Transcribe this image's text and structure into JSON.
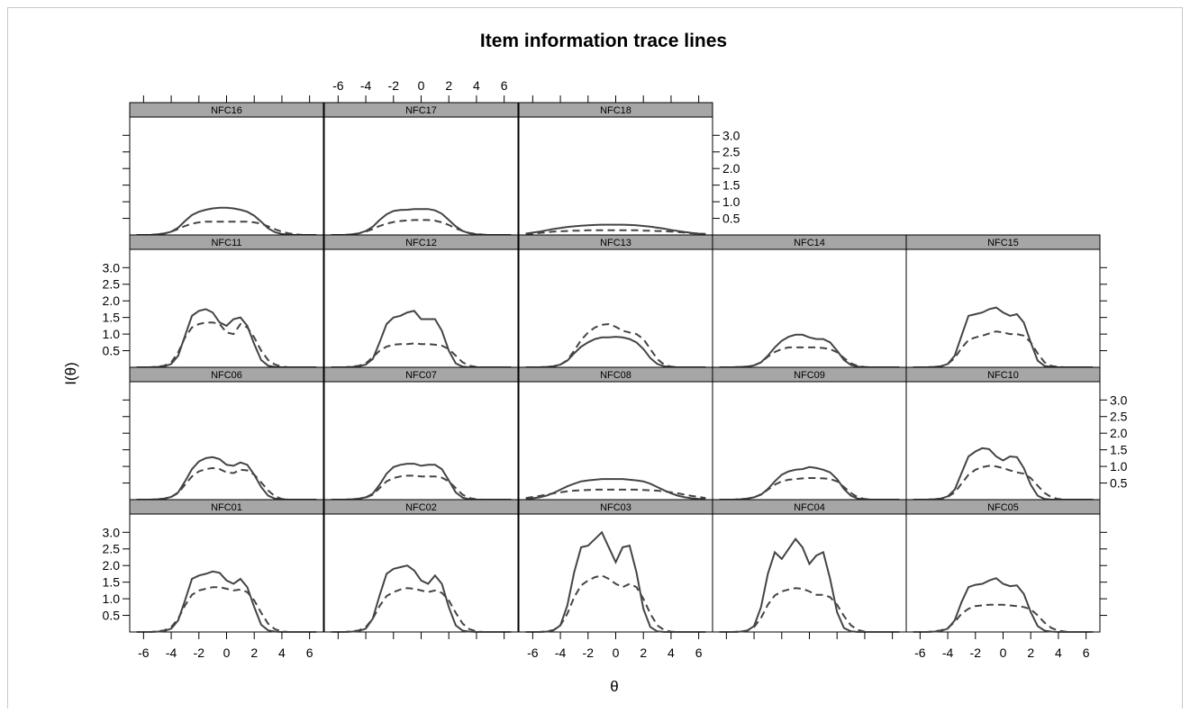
{
  "chart_data": {
    "type": "line",
    "title": "Item information trace lines",
    "xlabel": "θ",
    "ylabel": "I(θ)",
    "xlim": [
      -7,
      7
    ],
    "ylim": [
      0,
      3.55
    ],
    "x_ticks": [
      -6,
      -4,
      -2,
      0,
      2,
      4,
      6
    ],
    "x_tick_labels": [
      "-6",
      "-4",
      "-2",
      "0",
      "2",
      "4",
      "6"
    ],
    "y_ticks": [
      0.5,
      1.0,
      1.5,
      2.0,
      2.5,
      3.0
    ],
    "y_tick_labels": [
      "0.5",
      "1.0",
      "1.5",
      "2.0",
      "2.5",
      "3.0"
    ],
    "grid": false,
    "legend": "none",
    "line_color": "#444444",
    "strip_color": "#a6a6a6",
    "series_styles": [
      "solid",
      "dashed"
    ],
    "x": [
      -6.5,
      -6,
      -5.5,
      -5,
      -4.5,
      -4,
      -3.5,
      -3,
      -2.5,
      -2,
      -1.5,
      -1,
      -0.5,
      0,
      0.5,
      1,
      1.5,
      2,
      2.5,
      3,
      3.5,
      4,
      4.5,
      5,
      5.5,
      6,
      6.5
    ],
    "panels": [
      {
        "label": "NFC16",
        "solid": [
          0,
          0,
          0,
          0.02,
          0.04,
          0.1,
          0.22,
          0.42,
          0.6,
          0.7,
          0.76,
          0.8,
          0.82,
          0.82,
          0.8,
          0.76,
          0.7,
          0.58,
          0.4,
          0.2,
          0.08,
          0.03,
          0.01,
          0,
          0,
          0,
          0
        ],
        "dashed": [
          0,
          0,
          0,
          0.02,
          0.05,
          0.1,
          0.18,
          0.27,
          0.34,
          0.38,
          0.4,
          0.4,
          0.4,
          0.4,
          0.4,
          0.4,
          0.4,
          0.38,
          0.34,
          0.26,
          0.17,
          0.1,
          0.05,
          0.02,
          0,
          0,
          0
        ]
      },
      {
        "label": "NFC17",
        "solid": [
          0,
          0,
          0,
          0.02,
          0.05,
          0.12,
          0.25,
          0.45,
          0.62,
          0.72,
          0.75,
          0.76,
          0.78,
          0.78,
          0.78,
          0.74,
          0.64,
          0.45,
          0.26,
          0.12,
          0.05,
          0.02,
          0,
          0,
          0,
          0,
          0
        ],
        "dashed": [
          0,
          0,
          0,
          0.02,
          0.05,
          0.1,
          0.18,
          0.27,
          0.34,
          0.39,
          0.42,
          0.44,
          0.45,
          0.45,
          0.45,
          0.43,
          0.38,
          0.3,
          0.2,
          0.12,
          0.06,
          0.03,
          0.01,
          0,
          0,
          0,
          0
        ]
      },
      {
        "label": "NFC18",
        "solid": [
          0.04,
          0.07,
          0.1,
          0.14,
          0.18,
          0.21,
          0.24,
          0.26,
          0.28,
          0.29,
          0.3,
          0.31,
          0.31,
          0.31,
          0.31,
          0.3,
          0.29,
          0.27,
          0.25,
          0.22,
          0.19,
          0.15,
          0.12,
          0.09,
          0.06,
          0.04,
          0.03
        ],
        "dashed": [
          0.02,
          0.04,
          0.06,
          0.08,
          0.1,
          0.11,
          0.12,
          0.13,
          0.13,
          0.14,
          0.14,
          0.14,
          0.14,
          0.14,
          0.14,
          0.14,
          0.14,
          0.13,
          0.13,
          0.12,
          0.11,
          0.1,
          0.09,
          0.07,
          0.05,
          0.04,
          0.03
        ]
      },
      {
        "label": "NFC11",
        "solid": [
          0,
          0,
          0,
          0.01,
          0.03,
          0.1,
          0.35,
          0.95,
          1.55,
          1.7,
          1.75,
          1.65,
          1.35,
          1.25,
          1.45,
          1.5,
          1.25,
          0.7,
          0.22,
          0.05,
          0.01,
          0,
          0,
          0,
          0,
          0,
          0
        ],
        "dashed": [
          0,
          0,
          0,
          0.02,
          0.05,
          0.15,
          0.45,
          0.9,
          1.2,
          1.3,
          1.35,
          1.35,
          1.3,
          1.05,
          1.0,
          1.3,
          1.2,
          0.9,
          0.5,
          0.22,
          0.08,
          0.02,
          0,
          0,
          0,
          0,
          0
        ]
      },
      {
        "label": "NFC12",
        "solid": [
          0,
          0,
          0,
          0.01,
          0.03,
          0.08,
          0.25,
          0.75,
          1.3,
          1.5,
          1.55,
          1.65,
          1.7,
          1.45,
          1.45,
          1.45,
          1.1,
          0.5,
          0.12,
          0.02,
          0,
          0,
          0,
          0,
          0,
          0,
          0
        ],
        "dashed": [
          0,
          0,
          0,
          0.02,
          0.05,
          0.12,
          0.3,
          0.5,
          0.62,
          0.68,
          0.7,
          0.7,
          0.72,
          0.7,
          0.7,
          0.68,
          0.65,
          0.55,
          0.35,
          0.15,
          0.05,
          0.01,
          0,
          0,
          0,
          0,
          0
        ]
      },
      {
        "label": "NFC13",
        "solid": [
          0,
          0,
          0,
          0.01,
          0.03,
          0.08,
          0.2,
          0.42,
          0.62,
          0.75,
          0.85,
          0.9,
          0.9,
          0.92,
          0.9,
          0.85,
          0.75,
          0.55,
          0.28,
          0.1,
          0.03,
          0.01,
          0,
          0,
          0,
          0,
          0
        ],
        "dashed": [
          0,
          0,
          0,
          0.01,
          0.03,
          0.08,
          0.22,
          0.5,
          0.82,
          1.05,
          1.2,
          1.28,
          1.3,
          1.22,
          1.1,
          1.05,
          1.0,
          0.85,
          0.55,
          0.25,
          0.08,
          0.02,
          0,
          0,
          0,
          0,
          0
        ]
      },
      {
        "label": "NFC14",
        "solid": [
          0,
          0,
          0,
          0.01,
          0.02,
          0.06,
          0.15,
          0.35,
          0.6,
          0.8,
          0.92,
          0.98,
          0.98,
          0.9,
          0.85,
          0.85,
          0.75,
          0.5,
          0.22,
          0.07,
          0.02,
          0,
          0,
          0,
          0,
          0,
          0
        ],
        "dashed": [
          0,
          0,
          0,
          0.01,
          0.02,
          0.06,
          0.15,
          0.32,
          0.46,
          0.55,
          0.6,
          0.6,
          0.6,
          0.6,
          0.6,
          0.58,
          0.55,
          0.45,
          0.28,
          0.12,
          0.04,
          0.01,
          0,
          0,
          0,
          0,
          0
        ]
      },
      {
        "label": "NFC15",
        "solid": [
          0,
          0,
          0,
          0.01,
          0.03,
          0.1,
          0.35,
          0.95,
          1.55,
          1.6,
          1.65,
          1.75,
          1.8,
          1.65,
          1.55,
          1.6,
          1.35,
          0.75,
          0.2,
          0.04,
          0.01,
          0,
          0,
          0,
          0,
          0,
          0
        ],
        "dashed": [
          0,
          0,
          0,
          0.01,
          0.03,
          0.1,
          0.28,
          0.58,
          0.82,
          0.9,
          0.95,
          1.02,
          1.08,
          1.05,
          1.0,
          1.0,
          0.95,
          0.75,
          0.42,
          0.15,
          0.04,
          0.01,
          0,
          0,
          0,
          0,
          0
        ]
      },
      {
        "label": "NFC06",
        "solid": [
          0,
          0,
          0,
          0.01,
          0.03,
          0.08,
          0.22,
          0.55,
          0.92,
          1.15,
          1.25,
          1.28,
          1.22,
          1.05,
          1.02,
          1.12,
          1.05,
          0.75,
          0.38,
          0.12,
          0.03,
          0.01,
          0,
          0,
          0,
          0,
          0
        ],
        "dashed": [
          0,
          0,
          0,
          0.01,
          0.03,
          0.08,
          0.2,
          0.45,
          0.7,
          0.85,
          0.92,
          0.95,
          0.92,
          0.82,
          0.8,
          0.9,
          0.88,
          0.75,
          0.52,
          0.28,
          0.1,
          0.02,
          0,
          0,
          0,
          0,
          0
        ]
      },
      {
        "label": "NFC07",
        "solid": [
          0,
          0,
          0,
          0.01,
          0.03,
          0.07,
          0.18,
          0.45,
          0.78,
          0.98,
          1.05,
          1.08,
          1.08,
          1.02,
          1.05,
          1.05,
          0.92,
          0.58,
          0.22,
          0.06,
          0.01,
          0,
          0,
          0,
          0,
          0,
          0
        ],
        "dashed": [
          0,
          0,
          0,
          0.01,
          0.02,
          0.06,
          0.15,
          0.35,
          0.55,
          0.65,
          0.7,
          0.72,
          0.72,
          0.7,
          0.7,
          0.7,
          0.66,
          0.55,
          0.35,
          0.15,
          0.05,
          0.01,
          0,
          0,
          0,
          0,
          0
        ]
      },
      {
        "label": "NFC08",
        "solid": [
          0.02,
          0.04,
          0.07,
          0.12,
          0.2,
          0.3,
          0.4,
          0.48,
          0.55,
          0.58,
          0.6,
          0.62,
          0.62,
          0.62,
          0.62,
          0.6,
          0.58,
          0.55,
          0.48,
          0.38,
          0.28,
          0.19,
          0.12,
          0.07,
          0.04,
          0.02,
          0.01
        ],
        "dashed": [
          0.05,
          0.08,
          0.11,
          0.15,
          0.19,
          0.22,
          0.25,
          0.27,
          0.28,
          0.29,
          0.3,
          0.3,
          0.3,
          0.3,
          0.3,
          0.3,
          0.3,
          0.29,
          0.28,
          0.27,
          0.25,
          0.22,
          0.19,
          0.15,
          0.11,
          0.08,
          0.05
        ]
      },
      {
        "label": "NFC09",
        "solid": [
          0,
          0,
          0,
          0.01,
          0.03,
          0.07,
          0.15,
          0.32,
          0.55,
          0.75,
          0.85,
          0.9,
          0.92,
          0.98,
          0.95,
          0.9,
          0.82,
          0.62,
          0.32,
          0.12,
          0.03,
          0.01,
          0,
          0,
          0,
          0,
          0
        ],
        "dashed": [
          0,
          0,
          0,
          0.01,
          0.03,
          0.07,
          0.16,
          0.3,
          0.45,
          0.55,
          0.6,
          0.62,
          0.64,
          0.65,
          0.65,
          0.64,
          0.62,
          0.55,
          0.38,
          0.2,
          0.07,
          0.02,
          0,
          0,
          0,
          0,
          0
        ]
      },
      {
        "label": "NFC10",
        "solid": [
          0,
          0,
          0,
          0.01,
          0.03,
          0.1,
          0.3,
          0.8,
          1.3,
          1.45,
          1.55,
          1.52,
          1.3,
          1.18,
          1.3,
          1.28,
          0.95,
          0.45,
          0.12,
          0.02,
          0,
          0,
          0,
          0,
          0,
          0,
          0
        ],
        "dashed": [
          0,
          0,
          0,
          0.01,
          0.03,
          0.08,
          0.22,
          0.48,
          0.75,
          0.9,
          0.98,
          1.02,
          1.0,
          0.95,
          0.88,
          0.82,
          0.78,
          0.65,
          0.42,
          0.2,
          0.07,
          0.02,
          0,
          0,
          0,
          0,
          0
        ]
      },
      {
        "label": "NFC01",
        "solid": [
          0,
          0,
          0,
          0.01,
          0.03,
          0.1,
          0.35,
          0.95,
          1.6,
          1.7,
          1.75,
          1.82,
          1.78,
          1.55,
          1.45,
          1.6,
          1.35,
          0.75,
          0.22,
          0.05,
          0.01,
          0,
          0,
          0,
          0,
          0,
          0
        ],
        "dashed": [
          0,
          0,
          0,
          0.02,
          0.05,
          0.15,
          0.4,
          0.8,
          1.12,
          1.25,
          1.3,
          1.35,
          1.35,
          1.3,
          1.25,
          1.28,
          1.2,
          0.95,
          0.58,
          0.25,
          0.08,
          0.02,
          0,
          0,
          0,
          0,
          0
        ]
      },
      {
        "label": "NFC02",
        "solid": [
          0,
          0,
          0,
          0.01,
          0.03,
          0.1,
          0.4,
          1.1,
          1.75,
          1.9,
          1.95,
          2.0,
          1.85,
          1.55,
          1.45,
          1.7,
          1.45,
          0.75,
          0.2,
          0.04,
          0.01,
          0,
          0,
          0,
          0,
          0,
          0
        ],
        "dashed": [
          0,
          0,
          0,
          0.02,
          0.05,
          0.15,
          0.4,
          0.78,
          1.08,
          1.2,
          1.28,
          1.32,
          1.3,
          1.25,
          1.2,
          1.25,
          1.18,
          0.95,
          0.58,
          0.25,
          0.08,
          0.02,
          0,
          0,
          0,
          0,
          0
        ]
      },
      {
        "label": "NFC03",
        "solid": [
          0,
          0,
          0,
          0.01,
          0.05,
          0.2,
          0.8,
          1.8,
          2.55,
          2.6,
          2.8,
          3.0,
          2.55,
          2.1,
          2.55,
          2.6,
          1.8,
          0.7,
          0.15,
          0.02,
          0,
          0,
          0,
          0,
          0,
          0,
          0
        ],
        "dashed": [
          0,
          0,
          0,
          0.02,
          0.06,
          0.2,
          0.55,
          1.05,
          1.4,
          1.55,
          1.65,
          1.7,
          1.6,
          1.45,
          1.35,
          1.45,
          1.35,
          1.0,
          0.55,
          0.2,
          0.06,
          0.01,
          0,
          0,
          0,
          0,
          0
        ]
      },
      {
        "label": "NFC04",
        "solid": [
          0,
          0,
          0,
          0.01,
          0.04,
          0.18,
          0.75,
          1.75,
          2.4,
          2.2,
          2.5,
          2.8,
          2.55,
          2.05,
          2.3,
          2.4,
          1.6,
          0.6,
          0.12,
          0.02,
          0,
          0,
          0,
          0,
          0,
          0,
          0
        ],
        "dashed": [
          0,
          0,
          0,
          0.01,
          0.04,
          0.15,
          0.42,
          0.82,
          1.1,
          1.22,
          1.28,
          1.32,
          1.3,
          1.22,
          1.12,
          1.12,
          1.05,
          0.82,
          0.48,
          0.2,
          0.06,
          0.01,
          0,
          0,
          0,
          0,
          0
        ]
      },
      {
        "label": "NFC05",
        "solid": [
          0,
          0,
          0,
          0.01,
          0.03,
          0.1,
          0.35,
          0.9,
          1.35,
          1.42,
          1.45,
          1.55,
          1.62,
          1.45,
          1.38,
          1.4,
          1.15,
          0.6,
          0.18,
          0.04,
          0.01,
          0,
          0,
          0,
          0,
          0,
          0
        ],
        "dashed": [
          0,
          0,
          0,
          0.02,
          0.05,
          0.12,
          0.3,
          0.55,
          0.7,
          0.78,
          0.8,
          0.82,
          0.82,
          0.82,
          0.8,
          0.78,
          0.75,
          0.68,
          0.5,
          0.28,
          0.12,
          0.04,
          0.01,
          0,
          0,
          0,
          0
        ]
      }
    ]
  }
}
